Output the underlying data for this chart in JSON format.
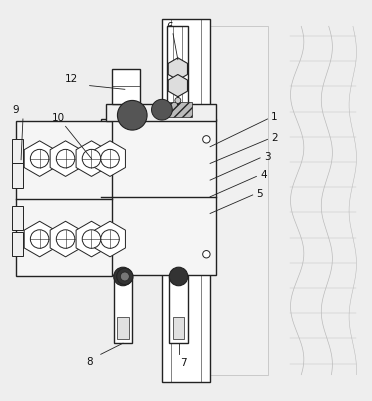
{
  "bg_color": "#eeeeee",
  "line_color": "#222222",
  "light_gray": "#bbbbbb",
  "mid_gray": "#888888",
  "dark_gray": "#444444",
  "white": "#ffffff",
  "rack_bg": "#e0e0e0"
}
